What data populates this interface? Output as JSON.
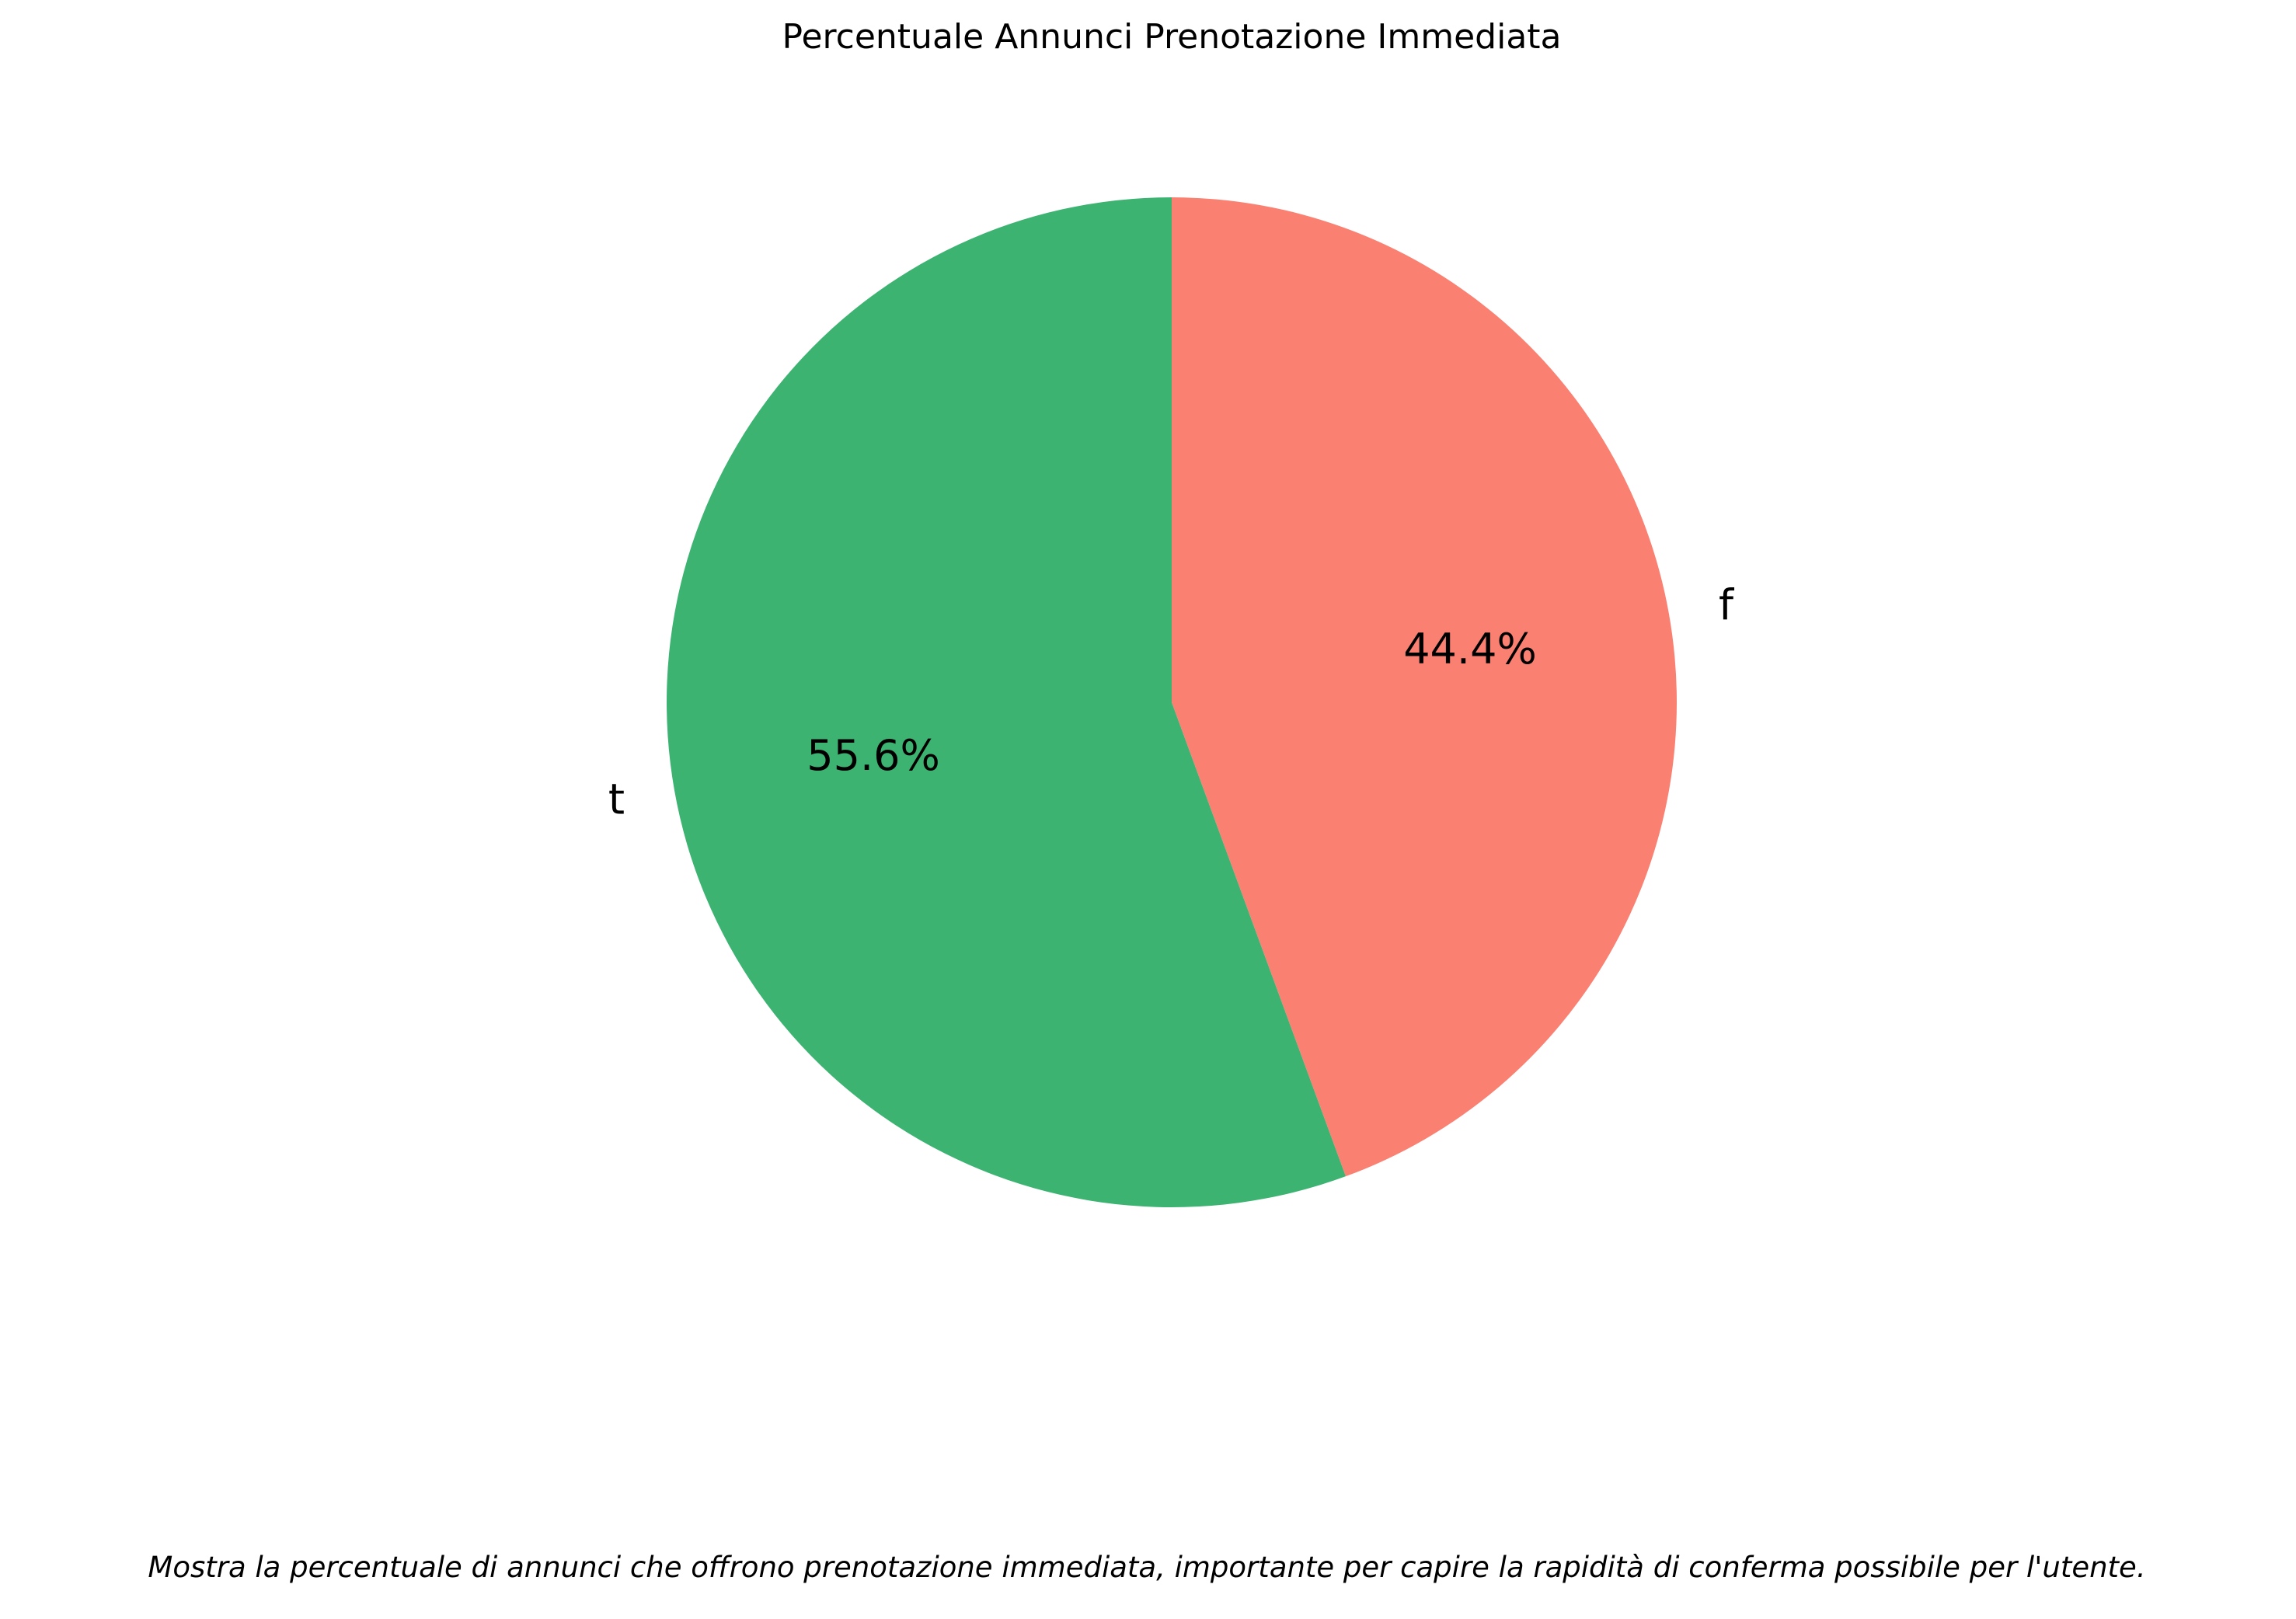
{
  "chart_data": {
    "type": "pie",
    "title": "Percentuale Annunci Prenotazione Immediata",
    "caption": "Mostra la percentuale di annunci che offrono prenotazione immediata, importante per capire la rapidità di conferma possibile per l'utente.",
    "slices": [
      {
        "label": "t",
        "value": 55.6,
        "pct_label": "55.6%",
        "color": "#3cb371"
      },
      {
        "label": "f",
        "value": 44.4,
        "pct_label": "44.4%",
        "color": "#fa8072"
      }
    ],
    "start_angle": "top",
    "direction": "counterclockwise"
  }
}
